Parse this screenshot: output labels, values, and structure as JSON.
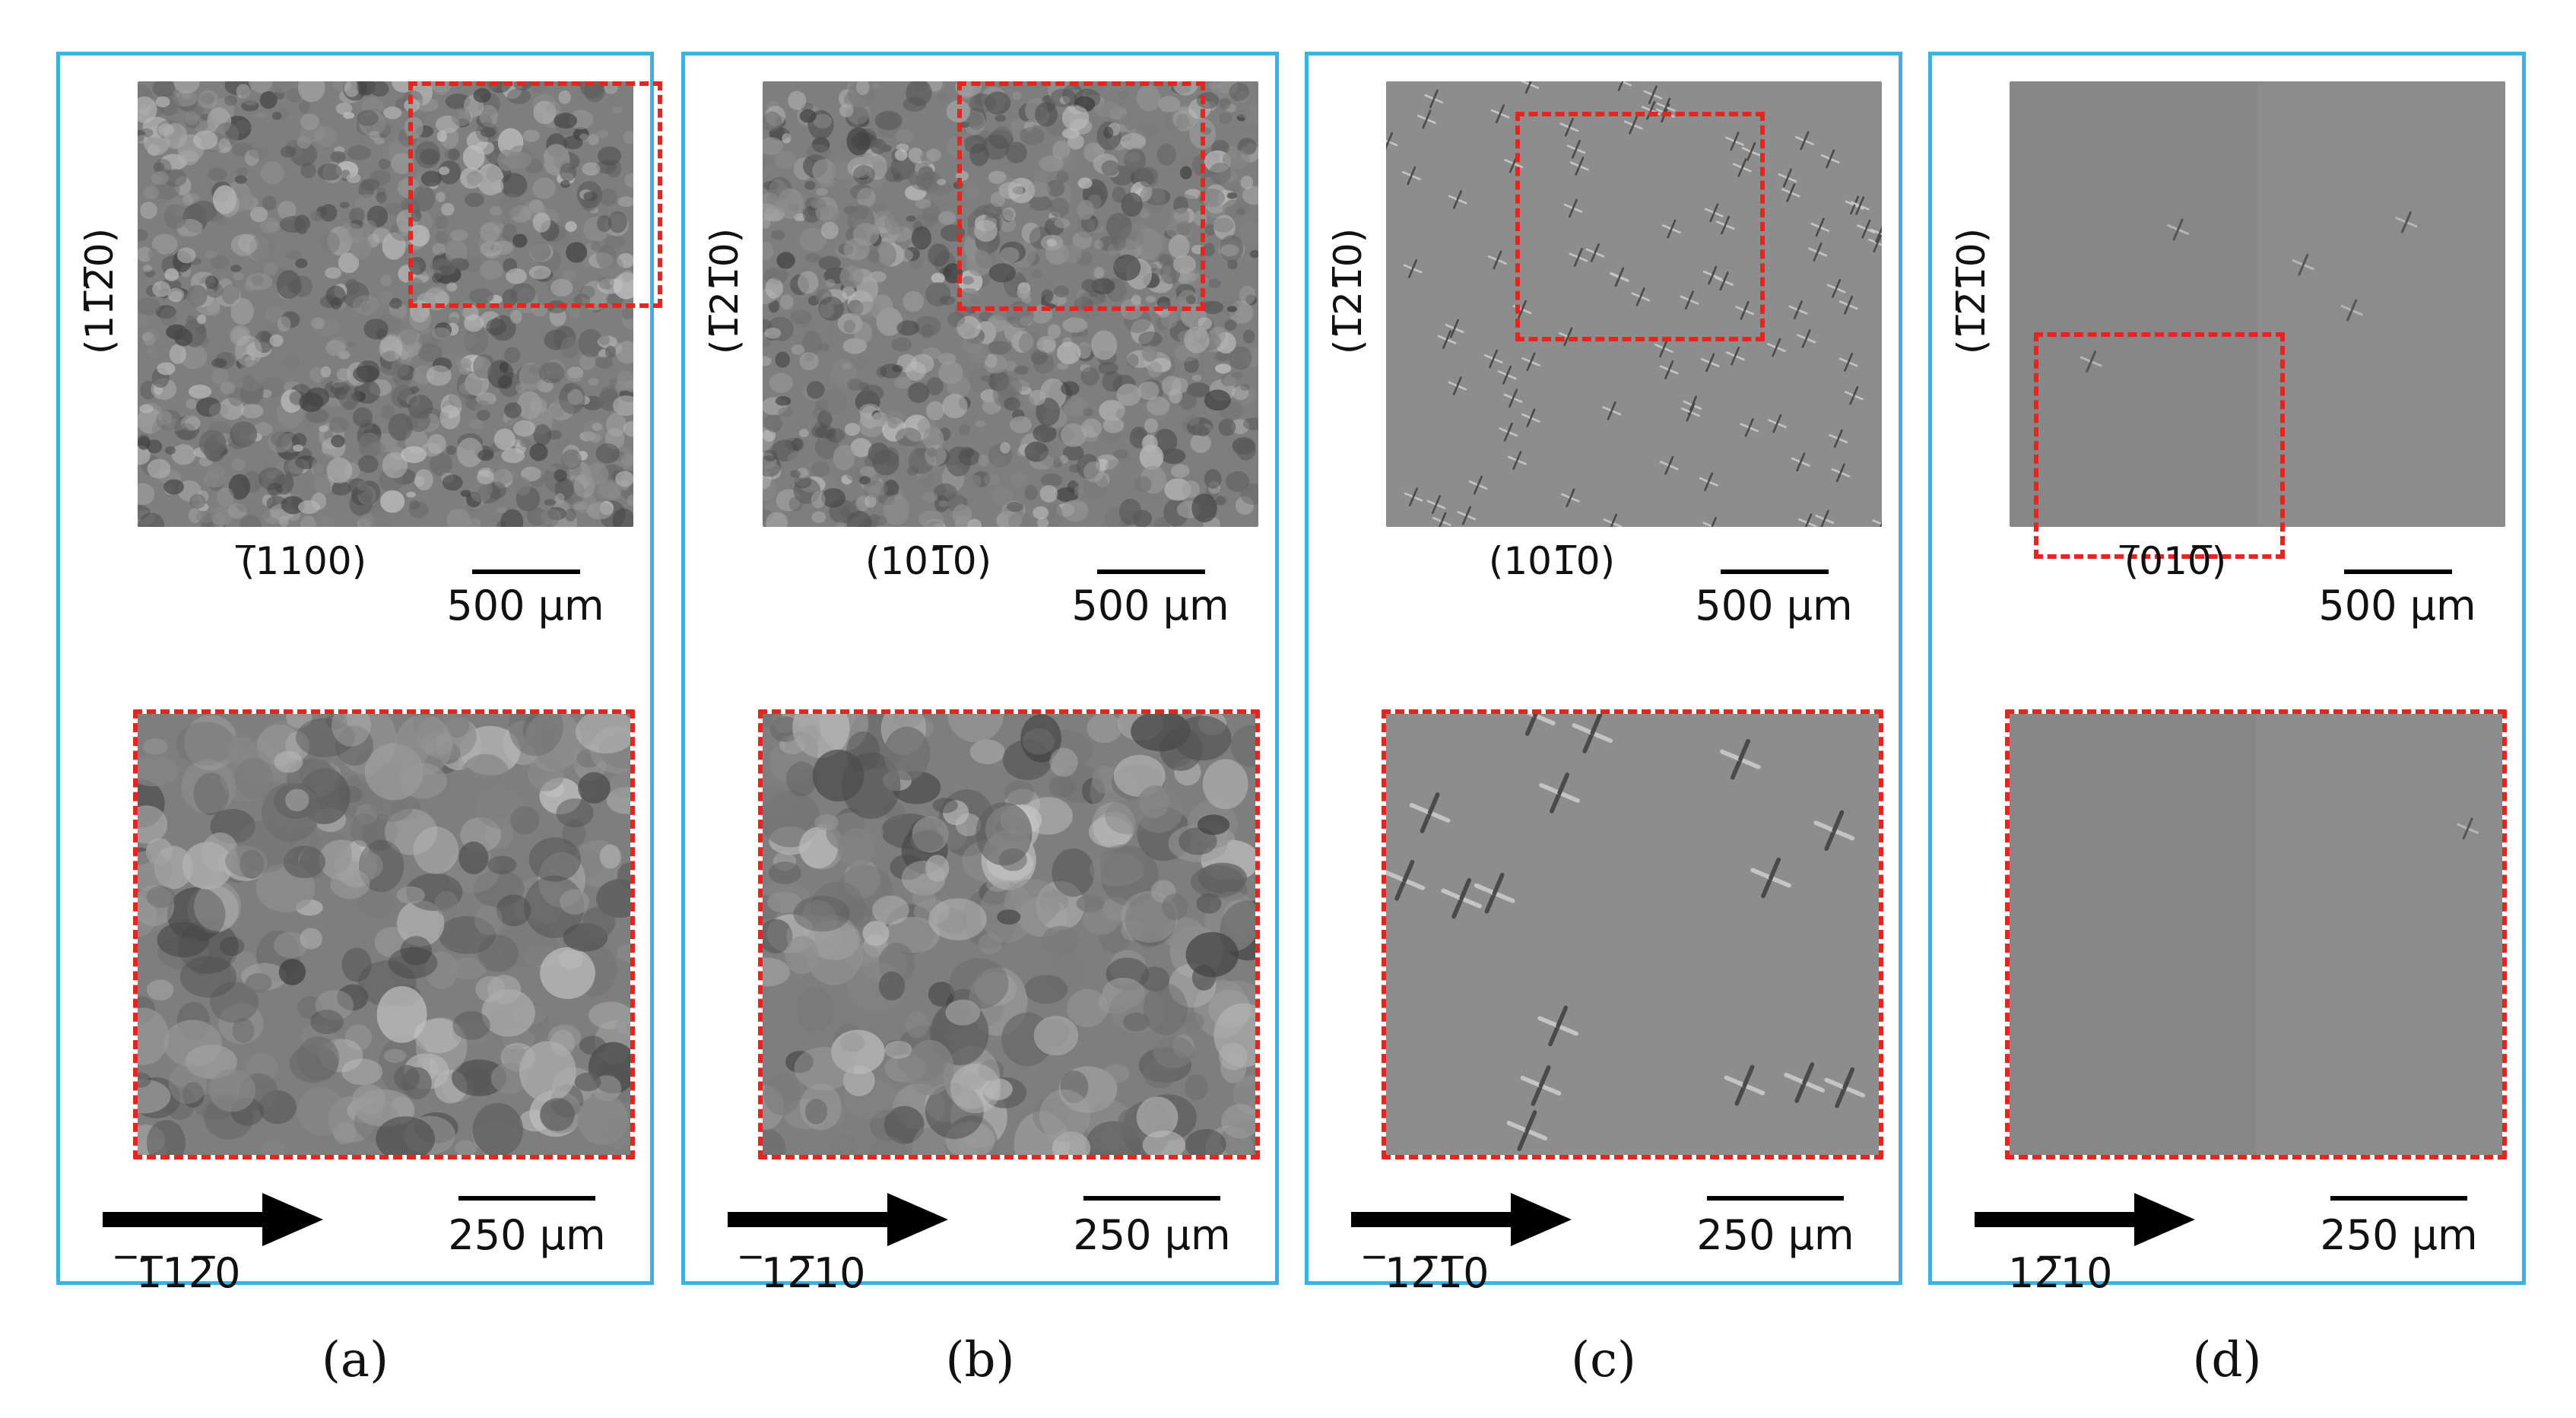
{
  "panels": [
    {
      "id": "a",
      "caption": "(a)",
      "ylabel": "(11̅2̅0)",
      "xlabel": "(̅1100)",
      "scale_top": "500 µm",
      "scale_bottom": "250 µm",
      "direction": "̅1̅12̅0",
      "texture": "rough"
    },
    {
      "id": "b",
      "caption": "(b)",
      "ylabel": "(1̅21̅0)",
      "xlabel": "(101̅0)",
      "scale_top": "500 µm",
      "scale_bottom": "250 µm",
      "direction": "̅12̅10",
      "texture": "rough"
    },
    {
      "id": "c",
      "caption": "(c)",
      "ylabel": "(1̅21̅0)",
      "xlabel": "(101̅0)",
      "scale_top": "500 µm",
      "scale_bottom": "250 µm",
      "direction": "̅12̅1̅0",
      "texture": "pits"
    },
    {
      "id": "d",
      "caption": "(d)",
      "ylabel": "(1̅2̅1̅0)",
      "xlabel": "(̅010̅)",
      "scale_top": "500 µm",
      "scale_bottom": "250 µm",
      "direction": "12̅10",
      "texture": "smooth"
    }
  ],
  "colors": {
    "frame": "#3fb0e4",
    "roi": "#e8241e",
    "sem_base": "#8a8a8a"
  }
}
